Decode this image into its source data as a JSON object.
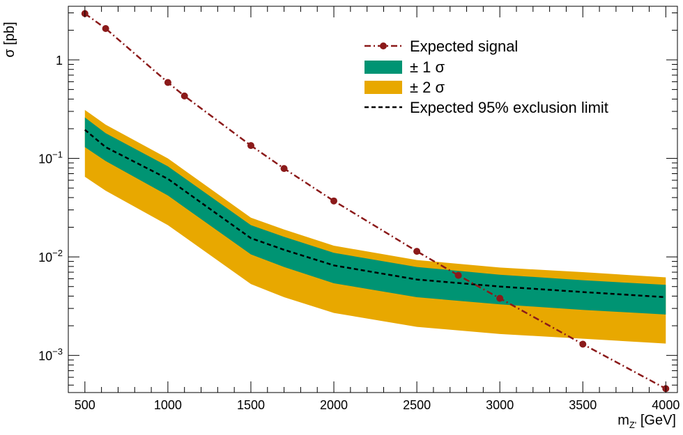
{
  "chart_data": {
    "type": "line",
    "title": "",
    "xlabel": {
      "base": "m",
      "sub": "Z'",
      "rest": " [GeV]"
    },
    "ylabel": "σ [pb]",
    "xlim": [
      400,
      4070
    ],
    "ylim": [
      0.00042,
      3.5
    ],
    "yscale": "log",
    "grid": false,
    "legend_position": "top-right",
    "x_ticks": [
      500,
      1000,
      1500,
      2000,
      2500,
      3000,
      3500,
      4000
    ],
    "x_tick_labels": [
      "500",
      "1000",
      "1500",
      "2000",
      "2500",
      "3000",
      "3500",
      "4000"
    ],
    "y_ticks": [
      {
        "value": 1,
        "base": "1",
        "exp": ""
      },
      {
        "value": 0.1,
        "base": "10",
        "exp": "−1"
      },
      {
        "value": 0.01,
        "base": "10",
        "exp": "−2"
      },
      {
        "value": 0.001,
        "base": "10",
        "exp": "−3"
      }
    ],
    "series": [
      {
        "name": "Expected signal",
        "style": "dash-dot line with circle markers",
        "color": "#8b1a1a",
        "x": [
          500,
          625,
          1000,
          1100,
          1500,
          1700,
          2000,
          2500,
          2750,
          3000,
          3500,
          4000
        ],
        "y": [
          2.95,
          2.08,
          0.59,
          0.43,
          0.135,
          0.079,
          0.037,
          0.0114,
          0.0065,
          0.0038,
          0.0013,
          0.00046
        ]
      },
      {
        "name": "Expected 95% exclusion limit",
        "style": "dashed",
        "color": "#000000",
        "x": [
          500,
          625,
          1000,
          1500,
          1700,
          2000,
          2500,
          3000,
          3500,
          4000
        ],
        "y": [
          0.195,
          0.13,
          0.062,
          0.0155,
          0.0118,
          0.0082,
          0.0059,
          0.005,
          0.0044,
          0.0039
        ]
      }
    ],
    "bands": [
      {
        "name": "± 2 σ",
        "color": "#e8a800",
        "x": [
          500,
          625,
          1000,
          1500,
          1700,
          2000,
          2500,
          3000,
          3500,
          4000
        ],
        "low": [
          0.065,
          0.047,
          0.021,
          0.0053,
          0.0039,
          0.0027,
          0.00195,
          0.00165,
          0.00148,
          0.00132
        ],
        "high": [
          0.31,
          0.22,
          0.1,
          0.025,
          0.019,
          0.013,
          0.0093,
          0.0078,
          0.007,
          0.0062
        ]
      },
      {
        "name": "± 1 σ",
        "color": "#009473",
        "x": [
          500,
          625,
          1000,
          1500,
          1700,
          2000,
          2500,
          3000,
          3500,
          4000
        ],
        "low": [
          0.13,
          0.094,
          0.042,
          0.0106,
          0.0079,
          0.0054,
          0.0039,
          0.0033,
          0.0029,
          0.0026
        ],
        "high": [
          0.26,
          0.18,
          0.083,
          0.021,
          0.016,
          0.011,
          0.0079,
          0.0066,
          0.0058,
          0.0052
        ]
      }
    ],
    "legend": [
      {
        "key": "signal",
        "label": "Expected signal"
      },
      {
        "key": "one_sigma",
        "label": "± 1 σ"
      },
      {
        "key": "two_sigma",
        "label": "± 2 σ"
      },
      {
        "key": "limit",
        "label": "Expected 95% exclusion limit"
      }
    ]
  }
}
